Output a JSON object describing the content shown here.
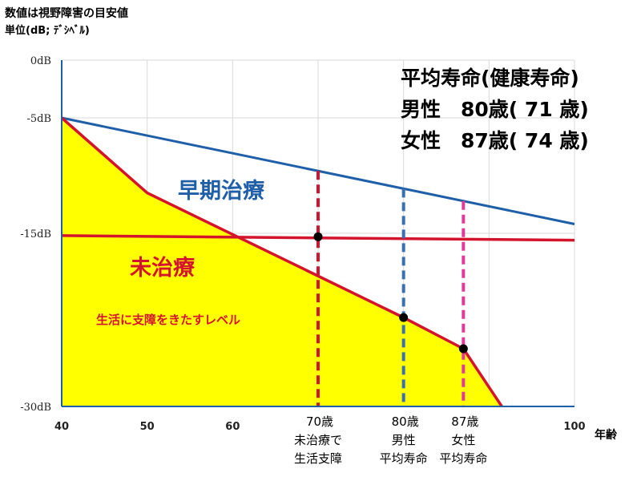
{
  "header": {
    "line1": "数値は視野障害の目安値",
    "line2": "単位(dB; ﾃﾞｼﾍﾞﾙ)"
  },
  "info_box": {
    "title": "平均寿命(健康寿命)",
    "male": "男性　80歳( 71 歳)",
    "female": "女性　87歳( 74 歳)"
  },
  "chart_data": {
    "type": "line",
    "x_unit_label": "年齢",
    "xlim": [
      40,
      100
    ],
    "ylim": [
      0,
      -30
    ],
    "x_ticks": [
      40,
      50,
      60,
      70,
      80,
      87,
      100
    ],
    "y_ticks": [
      0,
      -5,
      -15,
      -30
    ],
    "x_tick_labels": [
      "40",
      "50",
      "60",
      "70歳",
      "80歳",
      "87歳",
      "100"
    ],
    "y_tick_labels": [
      "0dB",
      "-5dB",
      "-15dB",
      "-30dB"
    ],
    "grid": true,
    "series": [
      {
        "name": "早期治療",
        "color": "#1f5fa8",
        "points": [
          [
            40,
            -5
          ],
          [
            100,
            -14.2
          ]
        ]
      },
      {
        "name": "未治療",
        "color": "#d4142c",
        "fill": "#ffff00",
        "points": [
          [
            40,
            -5
          ],
          [
            50,
            -11.5
          ],
          [
            80,
            -22.3
          ],
          [
            87,
            -25
          ],
          [
            91.5,
            -30
          ]
        ]
      },
      {
        "name": "生活に支障をきたすレベル",
        "color": "#d4142c",
        "points": [
          [
            40,
            -15.2
          ],
          [
            100,
            -15.6
          ]
        ]
      }
    ],
    "markers": [
      {
        "age": 70,
        "db": -15.3,
        "color": "#d4142c",
        "label": [
          "70歳",
          "未治療で",
          "生活支障"
        ]
      },
      {
        "age": 80,
        "db": -22.3,
        "color": "#3a6fb0",
        "label": [
          "80歳",
          "男性",
          "平均寿命"
        ]
      },
      {
        "age": 87,
        "db": -25.0,
        "color": "#e03a9a",
        "label": [
          "87歳",
          "女性",
          "平均寿命"
        ]
      }
    ],
    "marker_dot_color": "#000000",
    "endpoint_labels": {
      "early": "早期治療",
      "untreated": "未治療",
      "level": "生活に支障をきたすレベル"
    }
  }
}
